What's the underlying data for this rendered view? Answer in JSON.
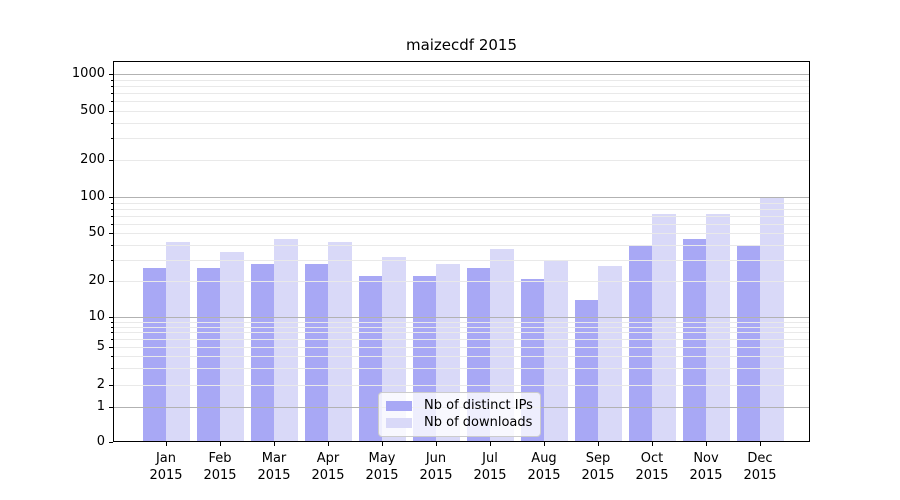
{
  "chart_data": {
    "type": "bar",
    "title": "maizecdf 2015",
    "categories": [
      "Jan",
      "Feb",
      "Mar",
      "Apr",
      "May",
      "Jun",
      "Jul",
      "Aug",
      "Sep",
      "Oct",
      "Nov",
      "Dec"
    ],
    "year_label": "2015",
    "series": [
      {
        "name": "Nb of distinct IPs",
        "color": "#a8a8f5",
        "values": [
          26,
          26,
          28,
          28,
          22,
          22,
          26,
          21,
          14,
          40,
          45,
          39
        ]
      },
      {
        "name": "Nb of downloads",
        "color": "#d9d9f8",
        "values": [
          42,
          35,
          45,
          42,
          32,
          28,
          37,
          30,
          27,
          73,
          72,
          100
        ]
      }
    ],
    "xlabel": "",
    "ylabel": "",
    "yscale": "log-like with 0 baseline",
    "ylim": [
      0,
      1300
    ],
    "y_tick_labels": [
      "0",
      "1",
      "2",
      "5",
      "10",
      "20",
      "50",
      "100",
      "200",
      "500",
      "1000"
    ],
    "y_tick_values": [
      0,
      1,
      2,
      5,
      10,
      20,
      50,
      100,
      200,
      500,
      1000
    ],
    "grid": "horizontal major + minor, drawn over bars",
    "legend_position": "lower center"
  }
}
